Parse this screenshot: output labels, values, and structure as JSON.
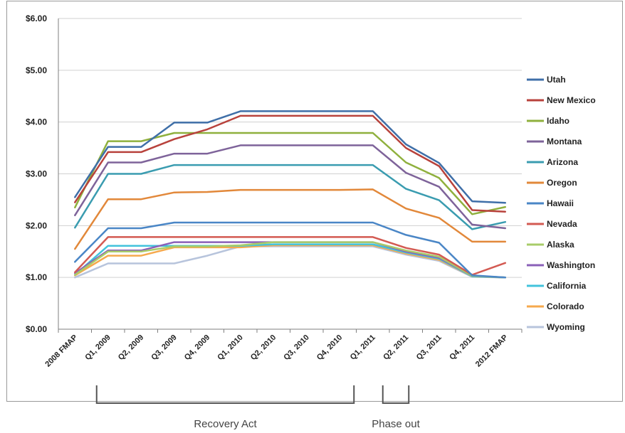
{
  "chart_data": {
    "type": "line",
    "title": "",
    "xlabel": "",
    "ylabel": "",
    "ylim": [
      0,
      6
    ],
    "yticks": [
      "$0.00",
      "$1.00",
      "$2.00",
      "$3.00",
      "$4.00",
      "$5.00",
      "$6.00"
    ],
    "categories": [
      "2008 FMAP",
      "Q1, 2009",
      "Q2, 2009",
      "Q3, 2009",
      "Q4, 2009",
      "Q1, 2010",
      "Q2, 2010",
      "Q3, 2010",
      "Q4, 2010",
      "Q1, 2011",
      "Q2, 2011",
      "Q3, 2011",
      "Q4, 2011",
      "2012 FMAP"
    ],
    "legend_position": "right",
    "grid": "horizontal",
    "series": [
      {
        "name": "Utah",
        "color": "#3f6fa8",
        "values": [
          2.55,
          3.52,
          3.52,
          3.99,
          3.99,
          4.21,
          4.21,
          4.21,
          4.21,
          4.21,
          3.57,
          3.21,
          2.47,
          2.44
        ]
      },
      {
        "name": "New Mexico",
        "color": "#b8423c",
        "values": [
          2.45,
          3.42,
          3.42,
          3.67,
          3.86,
          4.12,
          4.12,
          4.12,
          4.12,
          4.12,
          3.5,
          3.15,
          2.3,
          2.27
        ]
      },
      {
        "name": "Idaho",
        "color": "#8fb03d",
        "values": [
          2.35,
          3.63,
          3.63,
          3.79,
          3.79,
          3.79,
          3.79,
          3.79,
          3.79,
          3.79,
          3.22,
          2.92,
          2.22,
          2.36
        ]
      },
      {
        "name": "Montana",
        "color": "#7e639a",
        "values": [
          2.2,
          3.22,
          3.22,
          3.39,
          3.39,
          3.55,
          3.55,
          3.55,
          3.55,
          3.55,
          3.02,
          2.75,
          2.02,
          1.95
        ]
      },
      {
        "name": "Arizona",
        "color": "#3a9cb0",
        "values": [
          1.96,
          3.0,
          3.0,
          3.17,
          3.17,
          3.17,
          3.17,
          3.17,
          3.17,
          3.17,
          2.71,
          2.49,
          1.93,
          2.07
        ]
      },
      {
        "name": "Oregon",
        "color": "#e2883a",
        "values": [
          1.55,
          2.51,
          2.51,
          2.64,
          2.65,
          2.69,
          2.69,
          2.69,
          2.69,
          2.7,
          2.33,
          2.15,
          1.69,
          1.69
        ]
      },
      {
        "name": "Hawaii",
        "color": "#4a86c6",
        "values": [
          1.3,
          1.95,
          1.95,
          2.06,
          2.06,
          2.06,
          2.06,
          2.06,
          2.06,
          2.06,
          1.82,
          1.67,
          1.04,
          1.0
        ]
      },
      {
        "name": "Nevada",
        "color": "#d35a52",
        "values": [
          1.1,
          1.78,
          1.78,
          1.78,
          1.78,
          1.78,
          1.78,
          1.78,
          1.78,
          1.78,
          1.57,
          1.44,
          1.05,
          1.28
        ]
      },
      {
        "name": "Alaska",
        "color": "#a8cc6a",
        "values": [
          1.05,
          1.5,
          1.5,
          1.6,
          1.6,
          1.62,
          1.68,
          1.68,
          1.68,
          1.68,
          1.52,
          1.4,
          1.03,
          1.0
        ]
      },
      {
        "name": "Washington",
        "color": "#8a60b8",
        "values": [
          1.08,
          1.52,
          1.52,
          1.68,
          1.68,
          1.68,
          1.68,
          1.68,
          1.68,
          1.68,
          1.5,
          1.38,
          1.03,
          1.0
        ]
      },
      {
        "name": "California",
        "color": "#42c3dc",
        "values": [
          1.05,
          1.61,
          1.61,
          1.61,
          1.61,
          1.61,
          1.64,
          1.64,
          1.64,
          1.64,
          1.48,
          1.36,
          1.02,
          1.0
        ]
      },
      {
        "name": "Colorado",
        "color": "#f6a94d",
        "values": [
          1.04,
          1.42,
          1.42,
          1.58,
          1.58,
          1.58,
          1.62,
          1.62,
          1.62,
          1.62,
          1.46,
          1.34,
          1.02,
          1.0
        ]
      },
      {
        "name": "Wyoming",
        "color": "#b7c4dc",
        "values": [
          1.0,
          1.27,
          1.27,
          1.27,
          1.42,
          1.6,
          1.6,
          1.6,
          1.6,
          1.6,
          1.44,
          1.32,
          1.01,
          1.0
        ]
      }
    ],
    "annotations": [
      {
        "label": "Recovery Act",
        "from": "Q1, 2009",
        "to": "Q4, 2010"
      },
      {
        "label": "Phase out",
        "from": "Q1, 2011",
        "to": "Q2, 2011"
      }
    ]
  }
}
